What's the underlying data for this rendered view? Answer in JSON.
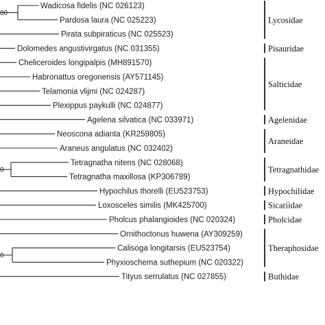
{
  "figure": {
    "taxa": [
      {
        "label": "Wadicosa fidelis (NC 026123)"
      },
      {
        "label": "Pardosa laura (NC 025223)"
      },
      {
        "label": "Pirata subpiraticus (NC 025523)"
      },
      {
        "label": "Dolomedes angustivirgatus (NC 031355)"
      },
      {
        "label": "Cheliceroides longipalpis (MH891570)"
      },
      {
        "label": "Habronattus oregonensis (AY571145)"
      },
      {
        "label": "Telamonia vlijmi (NC 024287)"
      },
      {
        "label": "Plexippus paykulli (NC 024877)"
      },
      {
        "label": "Agelena silvatica (NC 033971)"
      },
      {
        "label": "Neoscona adianta (KR259805)"
      },
      {
        "label": "Araneus angulatus (NC 032402)"
      },
      {
        "label": "Tetragnatha nitens (NC 028068)"
      },
      {
        "label": "Tetragnatha maxillosa (KP306789)"
      },
      {
        "label": "Hypochilus thorelli (EU523753)"
      },
      {
        "label": "Loxosceles similis (MK425700)"
      },
      {
        "label": "Pholcus phalangioides (NC 020324)"
      },
      {
        "label": "Ornithoctonus huwena (AY309259)"
      },
      {
        "label": "Calisoga longitarsis (EU523754)"
      },
      {
        "label": "Phyxioschema suthepium (NC 020322)"
      },
      {
        "label": "Tityus serrulatus (NC 027855)"
      }
    ],
    "families": [
      {
        "label": "Lycosidae",
        "taxa_range": [
          0,
          2
        ]
      },
      {
        "label": "Pisauridae",
        "taxa_range": [
          3,
          3
        ]
      },
      {
        "label": "Salticidae",
        "taxa_range": [
          4,
          7
        ]
      },
      {
        "label": "Agelenidae",
        "taxa_range": [
          8,
          8
        ]
      },
      {
        "label": "Araneidae",
        "taxa_range": [
          9,
          10
        ]
      },
      {
        "label": "Tetragnathidae",
        "taxa_range": [
          11,
          12
        ]
      },
      {
        "label": "Hypochilidae",
        "taxa_range": [
          13,
          13
        ]
      },
      {
        "label": "Sicariidae",
        "taxa_range": [
          14,
          14
        ]
      },
      {
        "label": "Pholcidae",
        "taxa_range": [
          15,
          15
        ]
      },
      {
        "label": "Theraphosidae",
        "taxa_range": [
          16,
          18
        ]
      },
      {
        "label": "Buthidae",
        "taxa_range": [
          19,
          19
        ]
      }
    ],
    "support_values": [
      {
        "label": "00",
        "at_taxa": [
          0,
          1
        ]
      },
      {
        "label": "0",
        "at_taxa": [
          11,
          12
        ]
      },
      {
        "label": "0",
        "at_taxa": [
          17,
          18
        ]
      }
    ]
  }
}
